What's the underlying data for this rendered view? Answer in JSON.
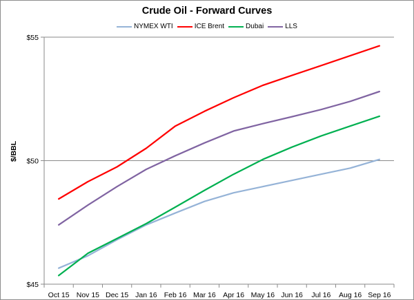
{
  "chart_data": {
    "type": "line",
    "title": "Crude Oil - Forward Curves",
    "xlabel": "",
    "ylabel": "$/BBL",
    "categories": [
      "Oct 15",
      "Nov 15",
      "Dec 15",
      "Jan 16",
      "Feb 16",
      "Mar 16",
      "Apr 16",
      "May 16",
      "Jun 16",
      "Jul 16",
      "Aug 16",
      "Sep 16"
    ],
    "ylim": [
      45,
      55
    ],
    "yticks": [
      45,
      50,
      55
    ],
    "ytick_labels": [
      "$45",
      "$50",
      "$55"
    ],
    "grid": "horizontal",
    "legend_position": "top",
    "series": [
      {
        "name": "NYMEX WTI",
        "color": "#95b3d7",
        "values": [
          45.65,
          46.15,
          46.8,
          47.4,
          47.88,
          48.35,
          48.7,
          48.95,
          49.2,
          49.45,
          49.7,
          50.05
        ]
      },
      {
        "name": "ICE Brent",
        "color": "#ff0000",
        "values": [
          48.45,
          49.15,
          49.75,
          50.5,
          51.4,
          52.0,
          52.55,
          53.05,
          53.45,
          53.85,
          54.25,
          54.65
        ]
      },
      {
        "name": "Dubai",
        "color": "#00b050",
        "values": [
          45.35,
          46.25,
          46.85,
          47.45,
          48.12,
          48.8,
          49.45,
          50.05,
          50.55,
          51.0,
          51.4,
          51.8
        ]
      },
      {
        "name": "LLS",
        "color": "#8064a2",
        "values": [
          47.4,
          48.2,
          48.95,
          49.65,
          50.2,
          50.72,
          51.2,
          51.5,
          51.78,
          52.07,
          52.4,
          52.8
        ]
      }
    ]
  }
}
